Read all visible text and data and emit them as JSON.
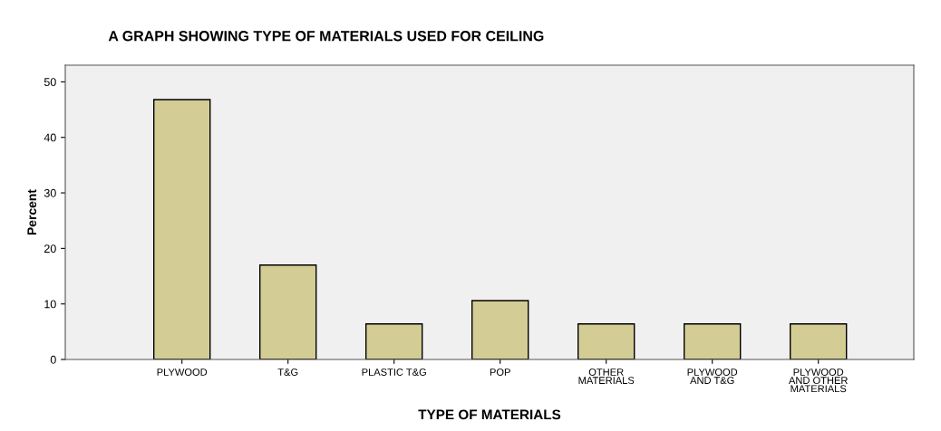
{
  "chart_data": {
    "type": "bar",
    "title": "A GRAPH SHOWING TYPE OF MATERIALS USED FOR CEILING",
    "xlabel": "TYPE OF MATERIALS",
    "ylabel": "Percent",
    "categories": [
      "PLYWOOD",
      "T&G",
      "PLASTIC T&G",
      "POP",
      "OTHER\nMATERIALS",
      "PLYWOOD\nAND T&G",
      "PLYWOOD\nAND OTHER\nMATERIALS"
    ],
    "values": [
      46.8,
      17.0,
      6.4,
      10.6,
      6.4,
      6.4,
      6.4
    ],
    "color": "#d3cd95",
    "ylim": [
      0,
      53
    ],
    "yticks": [
      0,
      10,
      20,
      30,
      40,
      50
    ],
    "grid": false,
    "legend": false
  }
}
